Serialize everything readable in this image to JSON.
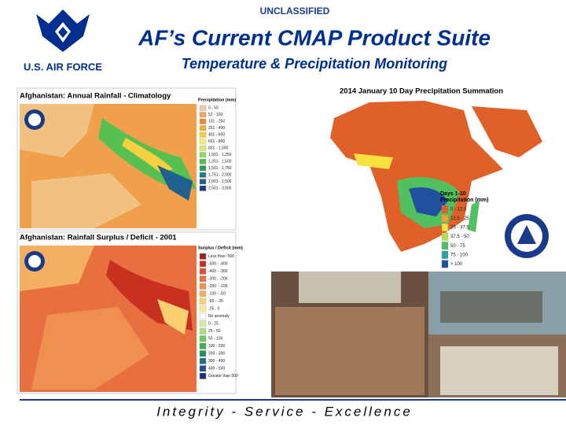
{
  "header": {
    "classification": "UNCLASSIFIED",
    "title": "AF’s Current CMAP Product Suite",
    "subtitle": "Temperature & Precipitation Monitoring",
    "logo_text": "U.S. AIR FORCE"
  },
  "panels": [
    {
      "title": "Afghanistan: Annual Rainfall - Climatology",
      "legend_title": "Precipitation (mm)",
      "legend": [
        {
          "label": "0 - 50",
          "color": "#f2c9a0"
        },
        {
          "label": "51 - 100",
          "color": "#f0a860"
        },
        {
          "label": "101 - 250",
          "color": "#ee8a2e"
        },
        {
          "label": "251 - 400",
          "color": "#f2b030"
        },
        {
          "label": "401 - 600",
          "color": "#f6d040"
        },
        {
          "label": "601 - 800",
          "color": "#f8f070"
        },
        {
          "label": "801 - 1,000",
          "color": "#d8ee70"
        },
        {
          "label": "1,001 - 1,250",
          "color": "#98d860"
        },
        {
          "label": "1,251 - 1,500",
          "color": "#58c050"
        },
        {
          "label": "1,501 - 1,750",
          "color": "#30a050"
        },
        {
          "label": "1,751 - 2,000",
          "color": "#208080"
        },
        {
          "label": "2,001 - 2,500",
          "color": "#206090"
        },
        {
          "label": "2,501 - 3,500",
          "color": "#203c80"
        }
      ]
    },
    {
      "title": "Afghanistan: Rainfall Surplus / Deficit - 2001",
      "legend_title": "Surplus / Deficit (mm)",
      "legend": [
        {
          "label": "Less than -500",
          "color": "#a02020"
        },
        {
          "label": "-500 - -400",
          "color": "#c83020"
        },
        {
          "label": "-400 - -300",
          "color": "#e05030"
        },
        {
          "label": "-300 - -200",
          "color": "#e87040"
        },
        {
          "label": "-200 - -100",
          "color": "#f09050"
        },
        {
          "label": "-100 - -50",
          "color": "#f4b060"
        },
        {
          "label": "-50 - -25",
          "color": "#f8d070"
        },
        {
          "label": "-25 - 0",
          "color": "#fbec90"
        },
        {
          "label": "No anomaly",
          "color": "#ffffff"
        },
        {
          "label": "0 - 25",
          "color": "#d0f0a0"
        },
        {
          "label": "25 - 50",
          "color": "#a8e080"
        },
        {
          "label": "50 - 100",
          "color": "#70c860"
        },
        {
          "label": "100 - 200",
          "color": "#40b050"
        },
        {
          "label": "200 - 300",
          "color": "#209060"
        },
        {
          "label": "300 - 400",
          "color": "#207080"
        },
        {
          "label": "400 - 500",
          "color": "#205090"
        },
        {
          "label": "Greater than 500",
          "color": "#203080"
        }
      ]
    },
    {
      "title": "2014 January 10 Day Precipitation Summation",
      "legend_title": "Precipitation (mm)",
      "legend_heading": "Days 1-10",
      "legend": [
        {
          "label": "0 - 12.5",
          "color": "#e0602a"
        },
        {
          "label": "12.5 - 25",
          "color": "#f0a030"
        },
        {
          "label": "25 - 37.5",
          "color": "#f8e040"
        },
        {
          "label": "37.5 - 50",
          "color": "#b0e050"
        },
        {
          "label": "50 - 75",
          "color": "#50c060"
        },
        {
          "label": "75 - 100",
          "color": "#30a0a0"
        },
        {
          "label": "> 100",
          "color": "#2050a0"
        }
      ]
    }
  ],
  "footer": "Integrity - Service - Excellence"
}
